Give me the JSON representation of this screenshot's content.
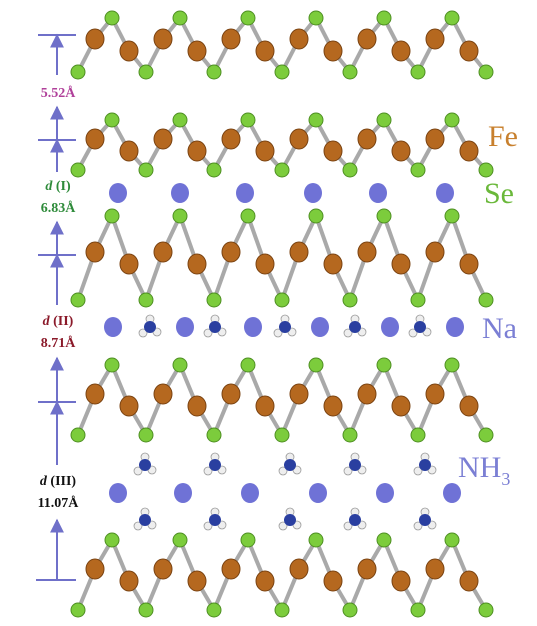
{
  "spacings": [
    {
      "value": "5.52Å"
    },
    {
      "symbol": "d",
      "index": "(I)",
      "value": "6.83Å"
    },
    {
      "symbol": "d",
      "index": "(II)",
      "value": "8.71Å"
    },
    {
      "symbol": "d",
      "index": "(III)",
      "value": "11.07Å"
    }
  ],
  "legend": {
    "fe": "Fe",
    "se": "Se",
    "na": "Na",
    "nh3": {
      "text": "NH",
      "subscript": "3"
    }
  }
}
